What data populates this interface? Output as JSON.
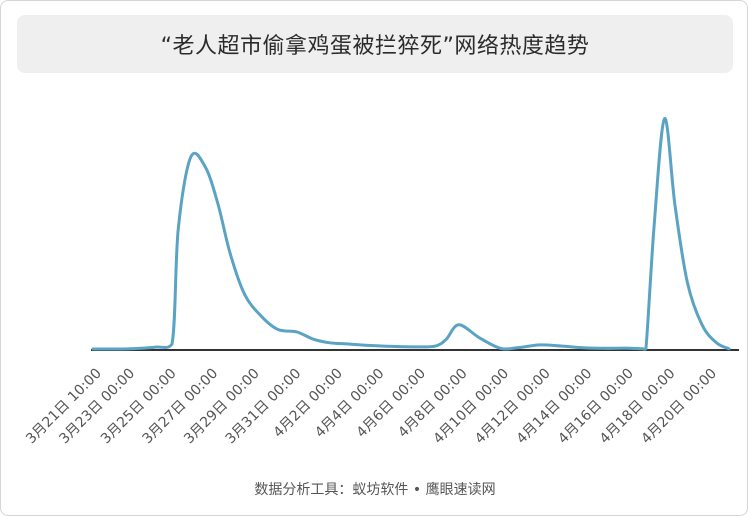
{
  "title": "“老人超市偷拿鸡蛋被拦猝死”网络热度趋势",
  "footer": "数据分析工具：蚁坊软件 • 鹰眼速读网",
  "colors": {
    "line": "#5ba3c4",
    "axis": "#333333",
    "tick_text": "#555555",
    "title_bg": "#efefef"
  },
  "chart_data": {
    "type": "line",
    "title": "“老人超市偷拿鸡蛋被拦猝死”网络热度趋势",
    "xlabel": "",
    "ylabel": "",
    "ylim": [
      0,
      100
    ],
    "grid": false,
    "legend": "none",
    "x_start": 0,
    "x_end": 30.6,
    "x_ticks": [
      {
        "pos": 0,
        "label": "3月21日 10:00"
      },
      {
        "pos": 1.6,
        "label": "3月23日 00:00"
      },
      {
        "pos": 3.6,
        "label": "3月25日 00:00"
      },
      {
        "pos": 5.6,
        "label": "3月27日 00:00"
      },
      {
        "pos": 7.6,
        "label": "3月29日 00:00"
      },
      {
        "pos": 9.6,
        "label": "3月31日 00:00"
      },
      {
        "pos": 11.6,
        "label": "4月2日 00:00"
      },
      {
        "pos": 13.6,
        "label": "4月4日 00:00"
      },
      {
        "pos": 15.6,
        "label": "4月6日 00:00"
      },
      {
        "pos": 17.6,
        "label": "4月8日 00:00"
      },
      {
        "pos": 19.6,
        "label": "4月10日 00:00"
      },
      {
        "pos": 21.6,
        "label": "4月12日 00:00"
      },
      {
        "pos": 23.6,
        "label": "4月14日 00:00"
      },
      {
        "pos": 25.6,
        "label": "4月16日 00:00"
      },
      {
        "pos": 27.6,
        "label": "4月18日 00:00"
      },
      {
        "pos": 29.6,
        "label": "4月20日 00:00"
      }
    ],
    "series": [
      {
        "x": [
          0,
          1.0,
          2.0,
          3.0,
          3.8,
          4.1,
          4.7,
          5.4,
          6.0,
          6.6,
          7.3,
          8.1,
          8.9,
          9.8,
          10.6,
          11.4,
          12.3,
          13.1,
          14.4,
          15.6,
          16.5,
          17.0,
          17.6,
          18.6,
          19.6,
          20.4,
          21.5,
          22.6,
          23.6,
          24.6,
          25.6,
          26.4,
          26.6,
          27.0,
          27.5,
          28.0,
          28.6,
          29.3,
          30.0,
          30.6
        ],
        "y": [
          0.4,
          0.4,
          0.6,
          1.2,
          2.5,
          50,
          80,
          76,
          61,
          40,
          23,
          14,
          8.5,
          7.5,
          4.5,
          3,
          2.5,
          2,
          1.5,
          1.3,
          1.7,
          4.5,
          10.5,
          5,
          0.7,
          0.9,
          2.1,
          1.6,
          0.9,
          0.7,
          0.8,
          0.5,
          0.5,
          52,
          96,
          60,
          28,
          10.5,
          3,
          0.5
        ]
      }
    ]
  }
}
